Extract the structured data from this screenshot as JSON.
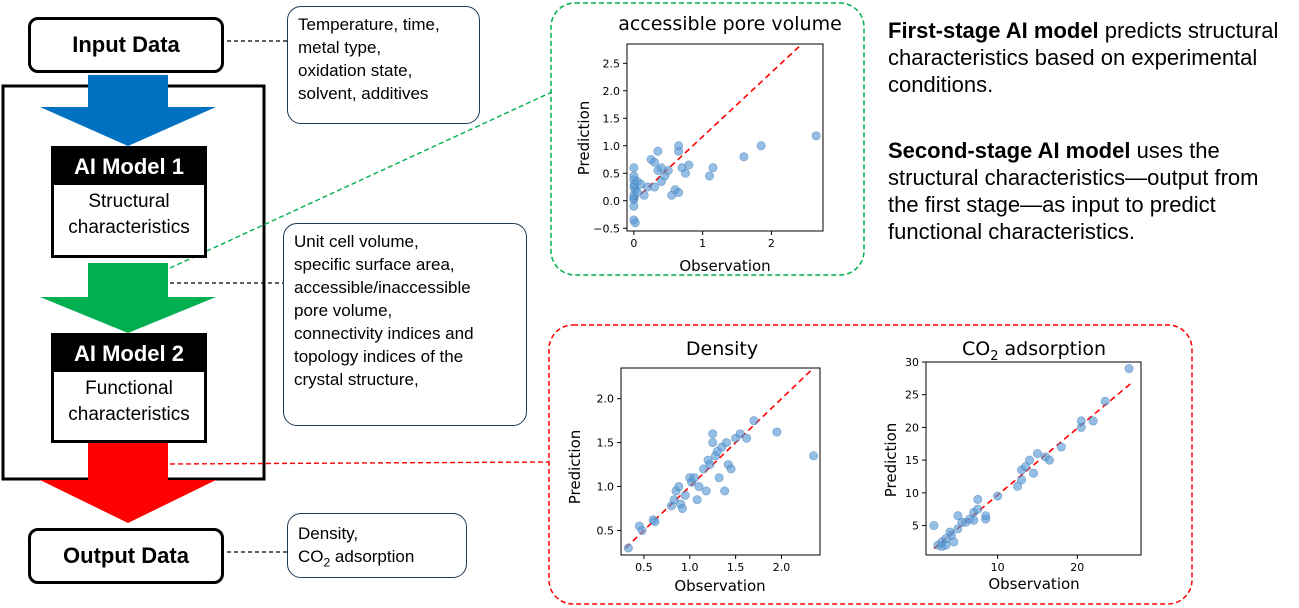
{
  "flow": {
    "input_label": "Input Data",
    "output_label": "Output Data",
    "model1": {
      "title": "AI Model 1",
      "line1": "Structural",
      "line2": "characteristics"
    },
    "model2": {
      "title": "AI Model 2",
      "line1": "Functional",
      "line2": "characteristics"
    },
    "arrow_colors": {
      "input": "#0070C0",
      "middle": "#00B050",
      "output": "#FF0000"
    }
  },
  "callouts": {
    "input_conditions": [
      "Temperature, time,",
      "metal type,",
      "oxidation state,",
      "solvent, additives"
    ],
    "structural": [
      "Unit cell volume,",
      "specific surface area,",
      "accessible/inaccessible",
      "pore volume,",
      "connectivity indices and",
      "topology indices of the",
      "crystal structure,"
    ],
    "output_line1": "Density,",
    "output_line2_prefix": "CO",
    "output_line2_sub": "2",
    "output_line2_suffix": " adsorption"
  },
  "descriptions": {
    "stage1_bold": "First-stage AI model",
    "stage1_text": " predicts structural characteristics based on experimental conditions.",
    "stage2_bold": "Second-stage AI model",
    "stage2_text": " uses the structural characteristics—output from the first stage—as input to predict functional characteristics."
  },
  "colors": {
    "green_frame": "#00B050",
    "red_frame": "#FF0000",
    "point": "#5B9BD5",
    "diag": "#FF0000"
  },
  "chart_data": [
    {
      "type": "scatter",
      "title": "accessible pore volume",
      "xlabel": "Observation",
      "ylabel": "Prediction",
      "xlim": [
        -0.1,
        2.75
      ],
      "ylim": [
        -0.55,
        2.85
      ],
      "xticks": [
        0,
        1,
        2
      ],
      "xtick_labels": [
        "0",
        "1",
        "2"
      ],
      "yticks": [
        -0.5,
        0.0,
        0.5,
        1.0,
        1.5,
        2.0,
        2.5
      ],
      "ytick_labels": [
        "−0.5",
        "0.0",
        "0.5",
        "1.0",
        "1.5",
        "2.0",
        "2.5"
      ],
      "diagonal": [
        [
          0,
          0
        ],
        [
          2.4,
          2.8
        ]
      ],
      "points": [
        [
          0,
          0.05
        ],
        [
          0,
          0.02
        ],
        [
          0,
          0.1
        ],
        [
          0.02,
          0.2
        ],
        [
          0,
          0.25
        ],
        [
          0.01,
          0.3
        ],
        [
          0,
          0.38
        ],
        [
          0.05,
          0.35
        ],
        [
          0,
          0.45
        ],
        [
          0,
          0.6
        ],
        [
          0,
          -0.1
        ],
        [
          0,
          -0.35
        ],
        [
          0.02,
          -0.4
        ],
        [
          0.05,
          0.15
        ],
        [
          0.1,
          0.3
        ],
        [
          0.2,
          0.25
        ],
        [
          0.25,
          0.75
        ],
        [
          0.3,
          0.7
        ],
        [
          0.35,
          0.55
        ],
        [
          0.4,
          0.6
        ],
        [
          0.35,
          0.9
        ],
        [
          0.4,
          0.35
        ],
        [
          0.45,
          0.45
        ],
        [
          0.5,
          0.55
        ],
        [
          0.55,
          0.1
        ],
        [
          0.6,
          0.2
        ],
        [
          0.65,
          0.9
        ],
        [
          0.65,
          1.0
        ],
        [
          0.7,
          0.6
        ],
        [
          0.75,
          0.5
        ],
        [
          0.8,
          0.65
        ],
        [
          0.65,
          0.15
        ],
        [
          1.1,
          0.45
        ],
        [
          1.15,
          0.6
        ],
        [
          1.6,
          0.8
        ],
        [
          1.85,
          1.0
        ],
        [
          2.65,
          1.18
        ],
        [
          0.3,
          0.25
        ],
        [
          0.15,
          0.1
        ]
      ]
    },
    {
      "type": "scatter",
      "title": "Density",
      "xlabel": "Observation",
      "ylabel": "Prediction",
      "xlim": [
        0.25,
        2.42
      ],
      "ylim": [
        0.22,
        2.35
      ],
      "xticks": [
        0.5,
        1.0,
        1.5,
        2.0
      ],
      "xtick_labels": [
        "0.5",
        "1.0",
        "1.5",
        "2.0"
      ],
      "yticks": [
        0.5,
        1.0,
        1.5,
        2.0
      ],
      "ytick_labels": [
        "0.5",
        "1.0",
        "1.5",
        "2.0"
      ],
      "diagonal": [
        [
          0.3,
          0.3
        ],
        [
          2.35,
          2.35
        ]
      ],
      "points": [
        [
          0.33,
          0.3
        ],
        [
          0.45,
          0.55
        ],
        [
          0.48,
          0.5
        ],
        [
          0.6,
          0.62
        ],
        [
          0.62,
          0.6
        ],
        [
          0.8,
          0.78
        ],
        [
          0.83,
          0.85
        ],
        [
          0.85,
          0.95
        ],
        [
          0.88,
          1.0
        ],
        [
          0.9,
          0.8
        ],
        [
          0.92,
          0.75
        ],
        [
          0.95,
          0.9
        ],
        [
          1.0,
          1.1
        ],
        [
          1.02,
          1.05
        ],
        [
          1.05,
          1.1
        ],
        [
          1.08,
          0.85
        ],
        [
          1.1,
          1.0
        ],
        [
          1.15,
          1.2
        ],
        [
          1.18,
          0.95
        ],
        [
          1.2,
          1.3
        ],
        [
          1.22,
          1.25
        ],
        [
          1.25,
          1.5
        ],
        [
          1.25,
          1.6
        ],
        [
          1.28,
          1.35
        ],
        [
          1.3,
          1.4
        ],
        [
          1.32,
          1.1
        ],
        [
          1.35,
          1.45
        ],
        [
          1.38,
          0.95
        ],
        [
          1.4,
          1.5
        ],
        [
          1.42,
          1.25
        ],
        [
          1.45,
          1.2
        ],
        [
          1.5,
          1.55
        ],
        [
          1.55,
          1.6
        ],
        [
          1.62,
          1.55
        ],
        [
          1.7,
          1.75
        ],
        [
          1.95,
          1.62
        ],
        [
          2.35,
          1.35
        ]
      ]
    },
    {
      "type": "scatter",
      "title_prefix": "CO",
      "title_sub": "2",
      "title_suffix": " adsorption",
      "xlabel": "Observation",
      "ylabel": "Prediction",
      "xlim": [
        1.0,
        28.0
      ],
      "ylim": [
        0.5,
        30.0
      ],
      "xticks": [
        10,
        20
      ],
      "xtick_labels": [
        "10",
        "20"
      ],
      "yticks": [
        5,
        10,
        15,
        20,
        25,
        30
      ],
      "ytick_labels": [
        "5",
        "10",
        "15",
        "20",
        "25",
        "30"
      ],
      "diagonal": [
        [
          2,
          1.5
        ],
        [
          27,
          27
        ]
      ],
      "points": [
        [
          2,
          5
        ],
        [
          2.5,
          2
        ],
        [
          3,
          2.5
        ],
        [
          3,
          1.8
        ],
        [
          3.5,
          3
        ],
        [
          3.5,
          2
        ],
        [
          4,
          4
        ],
        [
          4.2,
          3.5
        ],
        [
          4.5,
          2.5
        ],
        [
          5,
          4.5
        ],
        [
          5,
          6.5
        ],
        [
          5.5,
          5.5
        ],
        [
          6,
          5.5
        ],
        [
          6.5,
          6
        ],
        [
          7,
          7
        ],
        [
          7,
          5.8
        ],
        [
          7.5,
          9
        ],
        [
          7.5,
          7.5
        ],
        [
          8.5,
          6
        ],
        [
          8.5,
          6.5
        ],
        [
          10,
          9.5
        ],
        [
          12.5,
          11
        ],
        [
          13,
          12
        ],
        [
          13,
          13.5
        ],
        [
          13.5,
          14
        ],
        [
          14,
          15
        ],
        [
          14.5,
          13
        ],
        [
          15,
          16
        ],
        [
          16,
          15.5
        ],
        [
          16.5,
          15
        ],
        [
          18,
          17
        ],
        [
          20.5,
          20
        ],
        [
          20.5,
          21
        ],
        [
          22,
          21
        ],
        [
          23.5,
          24
        ],
        [
          26.5,
          29
        ]
      ]
    }
  ]
}
